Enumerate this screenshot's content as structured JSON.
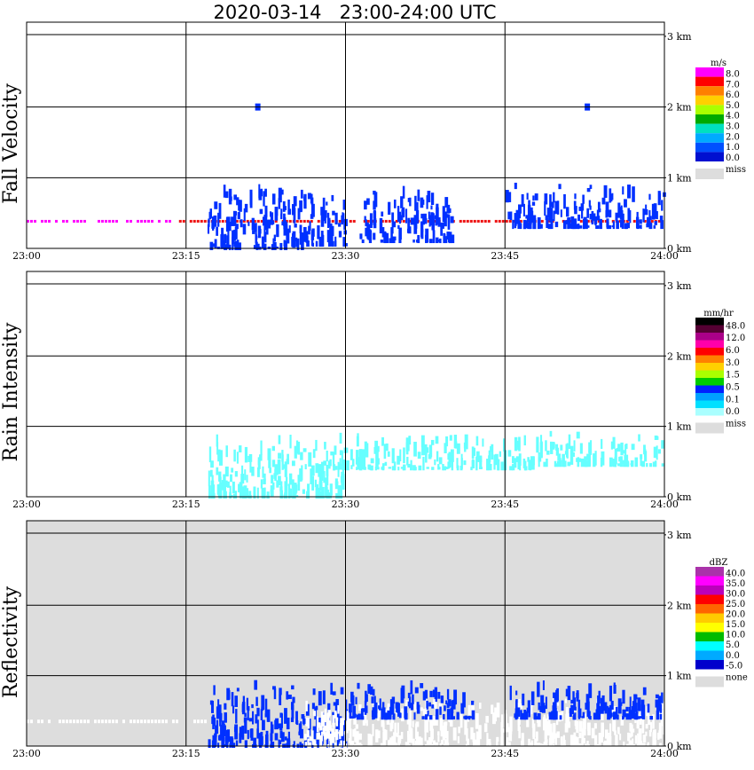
{
  "title": "2020-03-14   23:00-24:00 UTC",
  "chart_data": [
    {
      "type": "heatmap",
      "panel": "Fall Velocity",
      "x_ticks": [
        "23:00",
        "23:15",
        "23:30",
        "23:45",
        "24:00"
      ],
      "y_ticks": [
        "0 km",
        "1 km",
        "2 km",
        "3 km"
      ],
      "xlim": [
        0,
        60
      ],
      "ylim": [
        0,
        3.2
      ],
      "background": "#ffffff",
      "legend": {
        "unit": "m/s",
        "labels": [
          "8.0",
          "7.0",
          "6.0",
          "5.0",
          "4.0",
          "3.0",
          "2.0",
          "1.0",
          "0.0"
        ],
        "colors": [
          "#ff00ff",
          "#ff0000",
          "#ff8000",
          "#ffd000",
          "#aaff00",
          "#00aa00",
          "#00e0c0",
          "#00aaff",
          "#0050ff",
          "#0010d0"
        ],
        "missing_label": "miss",
        "missing_color": "#dddddd"
      },
      "cells": [
        {
          "t": [
            0,
            14
          ],
          "z": [
            0.35,
            0.42
          ],
          "color": "#ff00ff"
        },
        {
          "t": [
            14,
            60
          ],
          "z": [
            0.35,
            0.42
          ],
          "color": "#ee1111"
        },
        {
          "t": [
            17,
            26
          ],
          "z": [
            0.0,
            0.95
          ],
          "color": "#0030ff"
        },
        {
          "t": [
            26,
            30
          ],
          "z": [
            0.05,
            0.9
          ],
          "color": "#0030ff"
        },
        {
          "t": [
            31,
            40
          ],
          "z": [
            0.1,
            0.9
          ],
          "color": "#0030ff"
        },
        {
          "t": [
            45,
            60
          ],
          "z": [
            0.3,
            0.95
          ],
          "color": "#0030ff"
        },
        {
          "t": [
            21.5,
            22
          ],
          "z": [
            1.95,
            2.05
          ],
          "color": "#0030ff"
        },
        {
          "t": [
            52.5,
            53
          ],
          "z": [
            1.95,
            2.05
          ],
          "color": "#0030ff"
        }
      ]
    },
    {
      "type": "heatmap",
      "panel": "Rain Intensity",
      "x_ticks": [
        "23:00",
        "23:15",
        "23:30",
        "23:45",
        "24:00"
      ],
      "y_ticks": [
        "0 km",
        "1 km",
        "2 km",
        "3 km"
      ],
      "xlim": [
        0,
        60
      ],
      "ylim": [
        0,
        3.2
      ],
      "background": "#ffffff",
      "legend": {
        "unit": "mm/hr",
        "labels": [
          "48.0",
          "12.0",
          "6.0",
          "3.0",
          "1.5",
          "0.5",
          "0.1",
          "0.0"
        ],
        "colors": [
          "#000000",
          "#550033",
          "#aa0088",
          "#ff00aa",
          "#ff0000",
          "#ff8000",
          "#ffd000",
          "#aaff00",
          "#00cc00",
          "#0020ff",
          "#00a0ff",
          "#00e0ff",
          "#aaffff"
        ],
        "missing_label": "miss",
        "missing_color": "#dddddd"
      },
      "cells": [
        {
          "t": [
            17,
            30
          ],
          "z": [
            0.0,
            0.95
          ],
          "color": "#66ffff"
        },
        {
          "t": [
            30,
            48
          ],
          "z": [
            0.4,
            0.95
          ],
          "color": "#66ffff"
        },
        {
          "t": [
            48,
            60
          ],
          "z": [
            0.45,
            0.95
          ],
          "color": "#66ffff"
        }
      ]
    },
    {
      "type": "heatmap",
      "panel": "Reflectivity",
      "x_ticks": [
        "23:00",
        "23:15",
        "23:30",
        "23:45",
        "24:00"
      ],
      "y_ticks": [
        "0 km",
        "1 km",
        "2 km",
        "3 km"
      ],
      "xlim": [
        0,
        60
      ],
      "ylim": [
        0,
        3.2
      ],
      "background": "#dddddd",
      "legend": {
        "unit": "dBZ",
        "labels": [
          "40.0",
          "35.0",
          "30.0",
          "25.0",
          "20.0",
          "15.0",
          "10.0",
          "5.0",
          "0.0",
          "-5.0"
        ],
        "colors": [
          "#aa33aa",
          "#ff00ff",
          "#bb00bb",
          "#ff0000",
          "#ff6600",
          "#ffcc00",
          "#ffff00",
          "#00bb00",
          "#00ffff",
          "#00aaff",
          "#0000cc"
        ],
        "missing_label": "none",
        "missing_color": "#dddddd"
      },
      "cells": [
        {
          "t": [
            0,
            17
          ],
          "z": [
            0.3,
            0.4
          ],
          "color": "#ffffff"
        },
        {
          "t": [
            17,
            30
          ],
          "z": [
            0.0,
            0.95
          ],
          "color": "#0030ff"
        },
        {
          "t": [
            26,
            60
          ],
          "z": [
            0.0,
            0.7
          ],
          "color": "#ffffff"
        },
        {
          "t": [
            30,
            42
          ],
          "z": [
            0.4,
            0.95
          ],
          "color": "#0030ff"
        },
        {
          "t": [
            45,
            60
          ],
          "z": [
            0.4,
            0.95
          ],
          "color": "#0030ff"
        }
      ]
    }
  ]
}
